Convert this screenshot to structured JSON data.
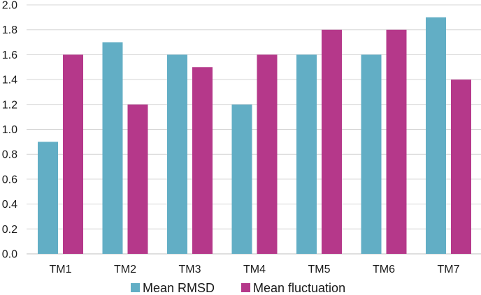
{
  "chart_data": {
    "type": "bar",
    "categories": [
      "TM1",
      "TM2",
      "TM3",
      "TM4",
      "TM5",
      "TM6",
      "TM7"
    ],
    "series": [
      {
        "name": "Mean RMSD",
        "color": "#62aec5",
        "values": [
          0.9,
          1.7,
          1.6,
          1.2,
          1.6,
          1.6,
          1.9
        ]
      },
      {
        "name": "Mean fluctuation",
        "color": "#b5388a",
        "values": [
          1.6,
          1.2,
          1.5,
          1.6,
          1.8,
          1.8,
          1.4
        ]
      }
    ],
    "title": "",
    "xlabel": "",
    "ylabel": "",
    "ylim": [
      0,
      2.0
    ],
    "yticks": [
      "0.0",
      "0.2",
      "0.4",
      "0.6",
      "0.8",
      "1.0",
      "1.2",
      "1.4",
      "1.6",
      "1.8",
      "2.0"
    ],
    "grid": true,
    "legend_position": "bottom"
  }
}
